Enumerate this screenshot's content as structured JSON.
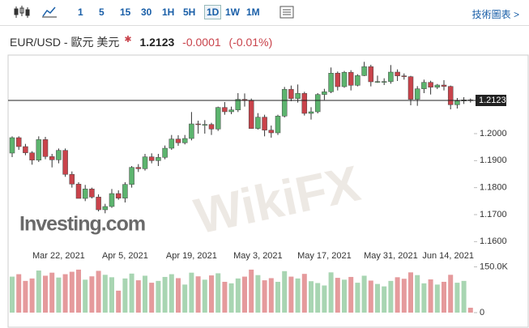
{
  "toolbar": {
    "intervals": [
      "1",
      "5",
      "15",
      "30",
      "1H",
      "5H",
      "1D",
      "1W",
      "1M"
    ],
    "selected": "1D",
    "tech_chart": "技術圖表"
  },
  "header": {
    "symbol": "EUR/USD - 歐元 美元",
    "price": "1.2123",
    "change": "-0.0001",
    "change_pct": "(-0.01%)"
  },
  "chart_data": {
    "type": "candlestick",
    "watermarks": [
      "Investing.com",
      "WikiFX"
    ],
    "categories": [
      null,
      null,
      null,
      null,
      null,
      null,
      null,
      "Mar 22, 2021",
      null,
      null,
      null,
      null,
      null,
      null,
      null,
      null,
      null,
      "Apr 5, 2021",
      null,
      null,
      null,
      null,
      null,
      null,
      null,
      null,
      null,
      "Apr 19, 2021",
      null,
      null,
      null,
      null,
      null,
      null,
      null,
      null,
      null,
      "May 3, 2021",
      null,
      null,
      null,
      null,
      null,
      null,
      null,
      null,
      null,
      "May 17, 2021",
      null,
      null,
      null,
      null,
      null,
      null,
      null,
      null,
      null,
      "May 31, 2021",
      null,
      null,
      null,
      null,
      null,
      null,
      null,
      null,
      null,
      "Jun 14, 2021",
      null,
      null
    ],
    "open": [
      1.1928,
      1.1985,
      1.1952,
      1.1929,
      1.1902,
      1.1978,
      1.1915,
      1.1903,
      1.1938,
      1.1849,
      1.1813,
      1.176,
      1.1795,
      1.1765,
      1.1718,
      1.173,
      1.1778,
      1.1761,
      1.1812,
      1.1875,
      1.187,
      1.1914,
      1.19,
      1.1912,
      1.1946,
      1.198,
      1.1966,
      1.1982,
      1.2036,
      1.2034,
      1.2034,
      1.2017,
      1.2097,
      1.2081,
      1.2088,
      1.2127,
      1.2124,
      1.2019,
      1.2061,
      1.2013,
      1.2003,
      1.2065,
      1.2164,
      1.213,
      1.2149,
      1.2075,
      1.2081,
      1.2145,
      1.2155,
      1.2224,
      1.2174,
      1.2227,
      1.2179,
      1.2215,
      1.2248,
      1.2192,
      1.2193,
      1.2193,
      1.2228,
      1.2214,
      1.2211,
      1.2127,
      1.2166,
      1.219,
      1.2172,
      1.218,
      1.2175,
      1.2107,
      1.2121,
      1.2125
    ],
    "high": [
      1.199,
      1.199,
      1.1962,
      1.1935,
      1.199,
      1.1988,
      1.1925,
      1.1945,
      1.1945,
      1.186,
      1.182,
      1.181,
      1.18,
      1.1775,
      1.174,
      1.1795,
      1.179,
      1.182,
      1.188,
      1.1887,
      1.1925,
      1.1927,
      1.1925,
      1.1956,
      1.1995,
      1.1994,
      1.1995,
      1.208,
      1.2048,
      1.205,
      1.204,
      1.21,
      1.2117,
      1.21,
      1.215,
      1.2149,
      1.213,
      1.2076,
      1.207,
      1.203,
      1.207,
      1.2173,
      1.2178,
      1.2182,
      1.2155,
      1.2098,
      1.215,
      1.2166,
      1.2245,
      1.223,
      1.2232,
      1.2235,
      1.222,
      1.2266,
      1.2255,
      1.2215,
      1.2205,
      1.2254,
      1.2238,
      1.2223,
      1.2214,
      1.2176,
      1.22,
      1.2196,
      1.2184,
      1.2198,
      1.2178,
      1.2132,
      1.2135,
      1.213
    ],
    "low": [
      1.1913,
      1.194,
      1.192,
      1.1885,
      1.1895,
      1.1905,
      1.1875,
      1.189,
      1.184,
      1.18,
      1.176,
      1.175,
      1.176,
      1.1712,
      1.1705,
      1.1725,
      1.1755,
      1.1745,
      1.18,
      1.1858,
      1.1863,
      1.189,
      1.188,
      1.1905,
      1.194,
      1.1955,
      1.196,
      1.1975,
      1.2,
      1.2,
      1.1995,
      1.201,
      1.207,
      1.2072,
      1.208,
      1.21,
      1.2018,
      1.2015,
      1.199,
      1.1985,
      1.1995,
      1.206,
      1.212,
      1.2115,
      1.2067,
      1.2052,
      1.2075,
      1.2125,
      1.215,
      1.216,
      1.217,
      1.216,
      1.2175,
      1.2213,
      1.2175,
      1.2188,
      1.218,
      1.2185,
      1.2195,
      1.22,
      1.2105,
      1.2103,
      1.215,
      1.2145,
      1.2165,
      1.216,
      1.209,
      1.2093,
      1.211,
      1.2115
    ],
    "close": [
      1.1985,
      1.1952,
      1.1929,
      1.1902,
      1.1978,
      1.1915,
      1.1903,
      1.1938,
      1.1849,
      1.1813,
      1.176,
      1.1795,
      1.1765,
      1.1718,
      1.173,
      1.1778,
      1.1761,
      1.1812,
      1.1875,
      1.187,
      1.1914,
      1.19,
      1.1912,
      1.1946,
      1.198,
      1.1966,
      1.1982,
      1.2036,
      1.2034,
      1.2034,
      1.2017,
      1.2097,
      1.2081,
      1.2088,
      1.2127,
      1.2124,
      1.2019,
      1.2061,
      1.2013,
      1.2003,
      1.2065,
      1.2164,
      1.213,
      1.2149,
      1.2075,
      1.2081,
      1.2145,
      1.2155,
      1.2224,
      1.2174,
      1.2227,
      1.2179,
      1.2215,
      1.2248,
      1.2192,
      1.2193,
      1.2193,
      1.2228,
      1.2214,
      1.2211,
      1.2127,
      1.2166,
      1.219,
      1.2172,
      1.218,
      1.2175,
      1.2107,
      1.2121,
      1.2125,
      1.2123
    ],
    "volume": [
      118000,
      126000,
      104000,
      112000,
      138000,
      121000,
      131000,
      115000,
      126000,
      134000,
      141000,
      108000,
      119000,
      137000,
      124000,
      116000,
      72000,
      112000,
      128000,
      106000,
      121000,
      98000,
      104000,
      117000,
      126000,
      113000,
      92000,
      131000,
      119000,
      108000,
      122000,
      129000,
      101000,
      96000,
      112000,
      118000,
      141000,
      123000,
      106000,
      113000,
      101000,
      136000,
      118000,
      112000,
      127000,
      103000,
      97000,
      89000,
      132000,
      114000,
      108000,
      117000,
      98000,
      121000,
      105000,
      94000,
      86000,
      104000,
      116000,
      111000,
      132000,
      123000,
      96000,
      109000,
      92000,
      101000,
      124000,
      98000,
      104000,
      16000
    ],
    "ylim": [
      1.1574,
      1.2285
    ],
    "yticks": [
      {
        "value": 1.16,
        "label": "1.1600"
      },
      {
        "value": 1.17,
        "label": "1.1700"
      },
      {
        "value": 1.18,
        "label": "1.1800"
      },
      {
        "value": 1.19,
        "label": "1.1900"
      },
      {
        "value": 1.2,
        "label": "1.2000"
      }
    ],
    "volume_ylim": [
      0,
      170000
    ],
    "volume_ticks": [
      {
        "value": 150000,
        "label": "150.0K"
      },
      0
    ],
    "up_color": "#5cb46e",
    "down_color": "#c9434b",
    "volume_up_color": "#a8d5b2",
    "volume_down_color": "#e59a9c"
  }
}
